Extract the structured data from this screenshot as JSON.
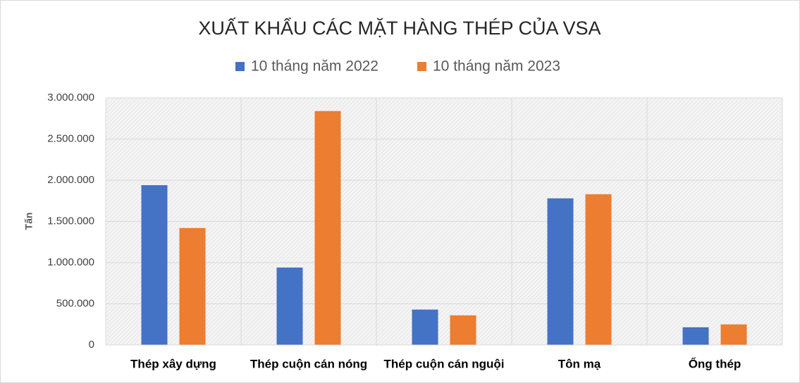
{
  "chart_data": {
    "type": "bar",
    "title": "XUẤT KHẨU CÁC MẶT HÀNG THÉP CỦA VSA",
    "y_label": "Tấn",
    "categories": [
      "Thép xây dựng",
      "Thép cuộn cán nóng",
      "Thép cuộn cán nguội",
      "Tôn mạ",
      "Ống thép"
    ],
    "series": [
      {
        "name": "10 tháng năm 2022",
        "color": "#4472c4",
        "values": [
          1940000,
          940000,
          430000,
          1780000,
          215000
        ]
      },
      {
        "name": "10 tháng năm 2023",
        "color": "#ed7d31",
        "values": [
          1420000,
          2840000,
          360000,
          1830000,
          250000
        ]
      }
    ],
    "ylim": [
      0,
      3000000
    ],
    "yticks": [
      0,
      {
        "value": 500000,
        "label": "500.000"
      },
      {
        "value": 1000000,
        "label": "1.000.000"
      },
      {
        "value": 1500000,
        "label": "1.500.000"
      },
      {
        "value": 2000000,
        "label": "2.000.000"
      },
      {
        "value": 2500000,
        "label": "2.500.000"
      },
      {
        "value": 3000000,
        "label": "3.000.000"
      }
    ],
    "grid": true,
    "legend": "top"
  }
}
